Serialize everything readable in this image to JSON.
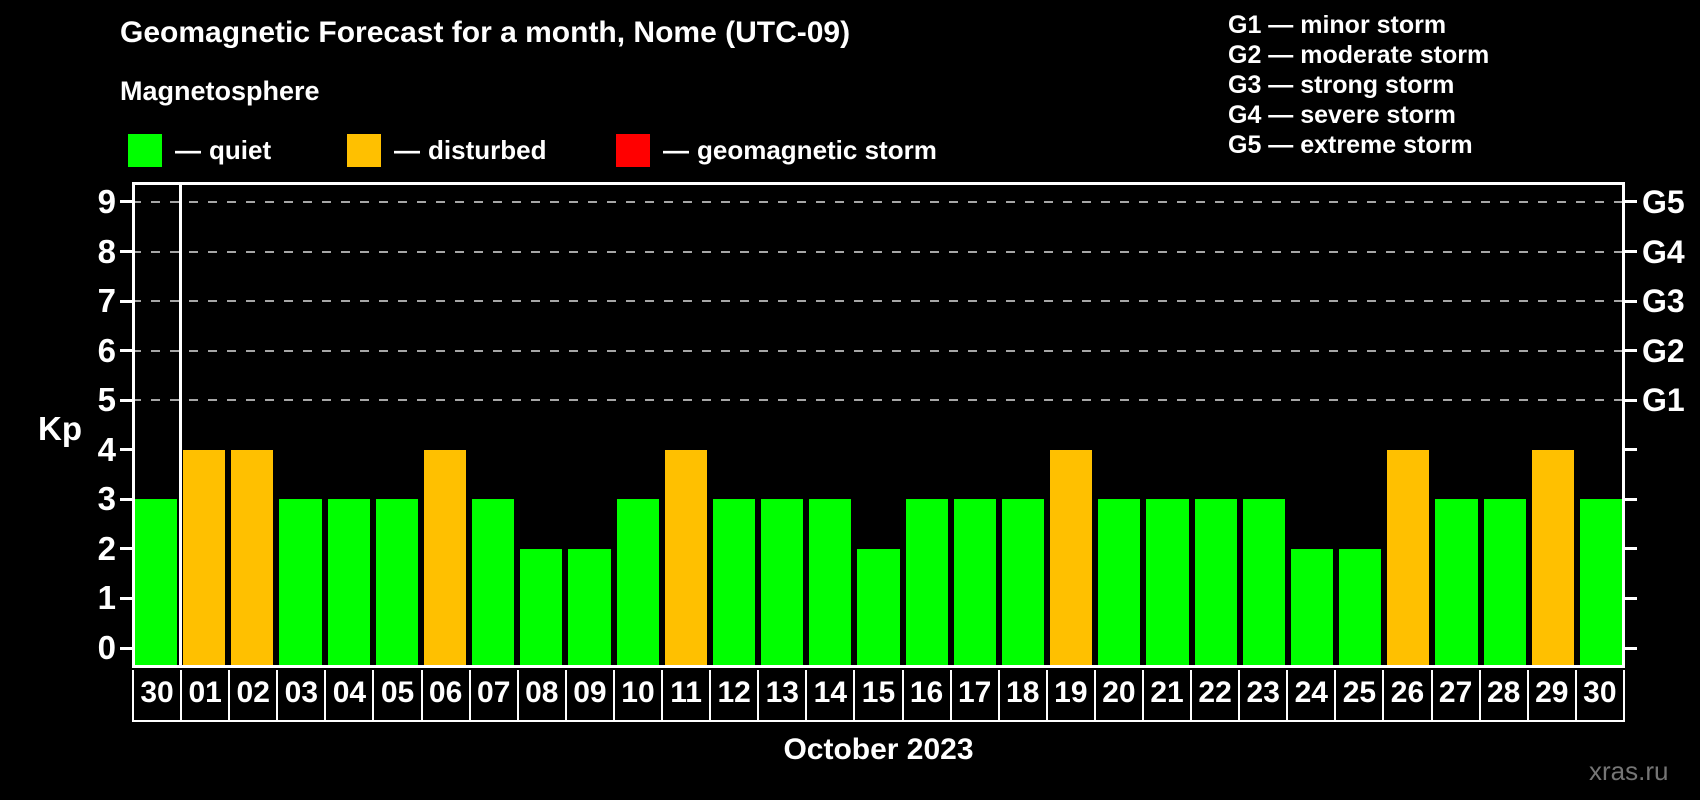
{
  "title": "Geomagnetic Forecast for a month, Nome (UTC-09)",
  "subtitle": "Magnetosphere",
  "legend": {
    "dash": "—",
    "items": [
      {
        "id": "quiet",
        "label": "quiet",
        "color": "#00ff00"
      },
      {
        "id": "disturbed",
        "label": "disturbed",
        "color": "#ffc000"
      },
      {
        "id": "storm",
        "label": "geomagnetic storm",
        "color": "#ff0000"
      }
    ]
  },
  "g_legend": [
    "G1 — minor storm",
    "G2 — moderate storm",
    "G3 — strong storm",
    "G4 — severe storm",
    "G5 — extreme storm"
  ],
  "axes": {
    "y_label": "Kp",
    "kp_ticks": [
      0,
      1,
      2,
      3,
      4,
      5,
      6,
      7,
      8,
      9
    ],
    "g_levels": [
      {
        "label": "G1",
        "kp": 5
      },
      {
        "label": "G2",
        "kp": 6
      },
      {
        "label": "G3",
        "kp": 7
      },
      {
        "label": "G4",
        "kp": 8
      },
      {
        "label": "G5",
        "kp": 9
      }
    ],
    "x_title": "October 2023"
  },
  "watermark": "xras.ru",
  "chart_data": {
    "type": "bar",
    "title": "Geomagnetic Forecast for a month, Nome (UTC-09)",
    "xlabel": "October 2023",
    "ylabel": "Kp",
    "ylim": [
      0,
      9.4
    ],
    "grid": "dashed horizontal at Kp 5-9 only",
    "legend_position": "top",
    "categories": [
      "30",
      "01",
      "02",
      "03",
      "04",
      "05",
      "06",
      "07",
      "08",
      "09",
      "10",
      "11",
      "12",
      "13",
      "14",
      "15",
      "16",
      "17",
      "18",
      "19",
      "20",
      "21",
      "22",
      "23",
      "24",
      "25",
      "26",
      "27",
      "28",
      "29",
      "30"
    ],
    "values": [
      3,
      4,
      4,
      3,
      3,
      3,
      4,
      3,
      2,
      2,
      3,
      4,
      3,
      3,
      3,
      2,
      3,
      3,
      3,
      4,
      3,
      3,
      3,
      3,
      2,
      2,
      4,
      3,
      3,
      4,
      3
    ],
    "statuses": [
      "quiet",
      "disturbed",
      "disturbed",
      "quiet",
      "quiet",
      "quiet",
      "disturbed",
      "quiet",
      "quiet",
      "quiet",
      "quiet",
      "disturbed",
      "quiet",
      "quiet",
      "quiet",
      "quiet",
      "quiet",
      "quiet",
      "quiet",
      "disturbed",
      "quiet",
      "quiet",
      "quiet",
      "quiet",
      "quiet",
      "quiet",
      "disturbed",
      "quiet",
      "quiet",
      "disturbed",
      "quiet"
    ],
    "status_colors": {
      "quiet": "#00ff00",
      "disturbed": "#ffc000",
      "storm": "#ff0000"
    },
    "gridlines_kp": [
      5,
      6,
      7,
      8,
      9
    ],
    "month_separator_after_index": 0
  }
}
